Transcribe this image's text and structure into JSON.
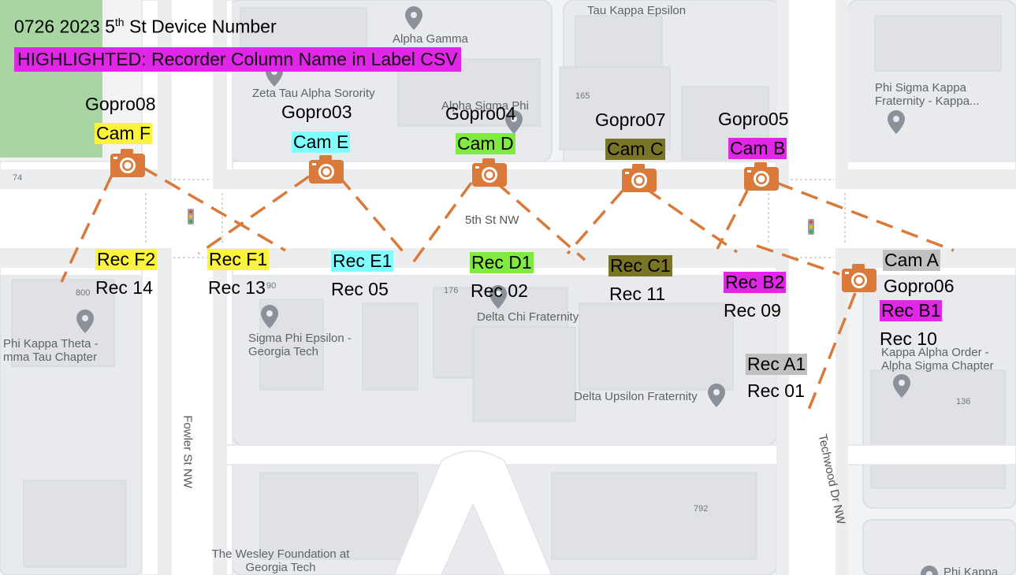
{
  "header": {
    "title_prefix": "0726 2023 5",
    "title_sup": "th",
    "title_suffix": " St Device Number",
    "highlight_note": "HIGHLIGHTED: Recorder Column Name in Label CSV"
  },
  "colors": {
    "highlight_banner": "#e026e6",
    "yellow": "#fbf43a",
    "cyan": "#80ffff",
    "green": "#80ea42",
    "olive": "#7a7427",
    "magenta": "#e026e6",
    "gray": "#c0c0c0",
    "camera_orange": "#d97a3a",
    "map_background": "#f1f3f4",
    "road": "#ffffff",
    "park": "#a8d5a2"
  },
  "cameras": [
    {
      "gopro": "Gopro08",
      "cam": "Cam F",
      "color": "#fbf43a"
    },
    {
      "gopro": "Gopro03",
      "cam": "Cam E",
      "color": "#80ffff"
    },
    {
      "gopro": "Gopro04",
      "cam": "Cam D",
      "color": "#80ea42"
    },
    {
      "gopro": "Gopro07",
      "cam": "Cam C",
      "color": "#7a7427"
    },
    {
      "gopro": "Gopro05",
      "cam": "Cam B",
      "color": "#e026e6"
    },
    {
      "gopro": "Gopro06",
      "cam": "Cam A",
      "color": "#c0c0c0"
    }
  ],
  "recorders": [
    {
      "label": "Rec F2",
      "num": "Rec 14",
      "color": "#fbf43a"
    },
    {
      "label": "Rec F1",
      "num": "Rec 13",
      "color": "#fbf43a"
    },
    {
      "label": "Rec E1",
      "num": "Rec 05",
      "color": "#80ffff"
    },
    {
      "label": "Rec D1",
      "num": "Rec 02",
      "color": "#80ea42"
    },
    {
      "label": "Rec C1",
      "num": "Rec 11",
      "color": "#7a7427"
    },
    {
      "label": "Rec B2",
      "num": "Rec 09",
      "color": "#e026e6"
    },
    {
      "label": "Rec B1",
      "num": "Rec 10",
      "color": "#e026e6"
    },
    {
      "label": "Rec A1",
      "num": "Rec 01",
      "color": "#c0c0c0"
    }
  ],
  "places": [
    "Tau Kappa Epsilon",
    "Alpha Gamma",
    "Zeta Tau Alpha Sorority",
    "Alpha Sigma Phi",
    "Phi Sigma Kappa Fraternity - Kappa...",
    "Phi Kappa Theta - mma Tau Chapter",
    "Sigma Phi Epsilon - Georgia Tech",
    "Delta Chi Fraternity",
    "Delta Upsilon Fraternity",
    "Kappa Alpha Order - Alpha Sigma Chapter",
    "The Wesley Foundation at Georgia Tech",
    "Phi Kappa"
  ],
  "streets": {
    "main": "5th St NW",
    "fowler": "Fowler St NW",
    "techwood": "Techwood Dr NW"
  },
  "building_numbers": [
    "74",
    "165",
    "800",
    "90",
    "176",
    "136",
    "792"
  ]
}
